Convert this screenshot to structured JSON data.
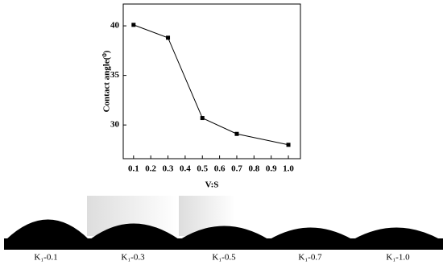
{
  "chart_data": {
    "type": "line",
    "x_label": "V:S",
    "y_label": "Contact angle(⁰)",
    "x": [
      0.1,
      0.3,
      0.5,
      0.7,
      1.0
    ],
    "values": [
      40.1,
      38.8,
      30.7,
      29.1,
      28.0
    ],
    "color": "#000000",
    "xlim": [
      0.04,
      1.07
    ],
    "xticks": [
      0.1,
      0.2,
      0.3,
      0.4,
      0.5,
      0.6,
      0.7,
      0.8,
      0.9,
      {
        "value": 1.0,
        "label": "1.0"
      }
    ],
    "ylim": [
      26.6,
      42.2
    ],
    "yticks": [
      30,
      35,
      40
    ]
  },
  "images": [
    {
      "label": "K₁-0.1"
    },
    {
      "label": "K₁-0.3"
    },
    {
      "label": "K₁-0.5"
    },
    {
      "label": "K₁-0.7"
    },
    {
      "label": "K₁-1.0"
    }
  ]
}
